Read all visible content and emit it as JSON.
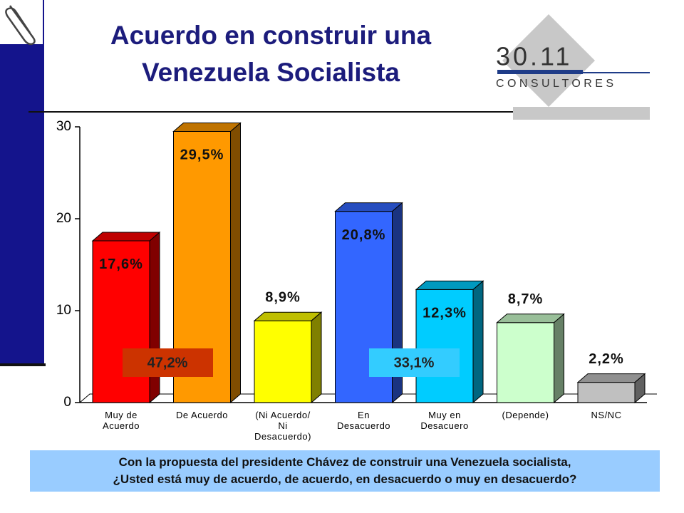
{
  "chart_data": {
    "type": "bar",
    "title": "Acuerdo en construir una\nVenezuela Socialista",
    "logo_number": "30.11",
    "logo_text": "C O N S U L T O R E S",
    "categories": [
      "Muy de\nAcuerdo",
      "De Acuerdo",
      "(Ni Acuerdo/\nNi\nDesacuerdo)",
      "En\nDesacuerdo",
      "Muy en\nDesacuero",
      "(Depende)",
      "NS/NC"
    ],
    "values": [
      17.6,
      29.5,
      8.9,
      20.8,
      12.3,
      8.7,
      2.2
    ],
    "value_labels": [
      "17,6%",
      "29,5%",
      "8,9%",
      "20,8%",
      "12,3%",
      "8,7%",
      "2,2%"
    ],
    "colors": [
      "#ff0000",
      "#ff9900",
      "#ffff00",
      "#3366ff",
      "#00ccff",
      "#ccffcc",
      "#c0c0c0"
    ],
    "ylim": [
      0,
      30
    ],
    "yticks": [
      0,
      10,
      20,
      30
    ],
    "annotations": [
      {
        "text": "47,2%",
        "color": "#cc3300"
      },
      {
        "text": "33,1%",
        "color": "#33ccff"
      }
    ],
    "question": "Con la propuesta del presidente Chávez de construir una Venezuela socialista,\n¿Usted  está  muy de acuerdo,  de acuerdo,  en desacuerdo  o  muy en desacuerdo?"
  }
}
